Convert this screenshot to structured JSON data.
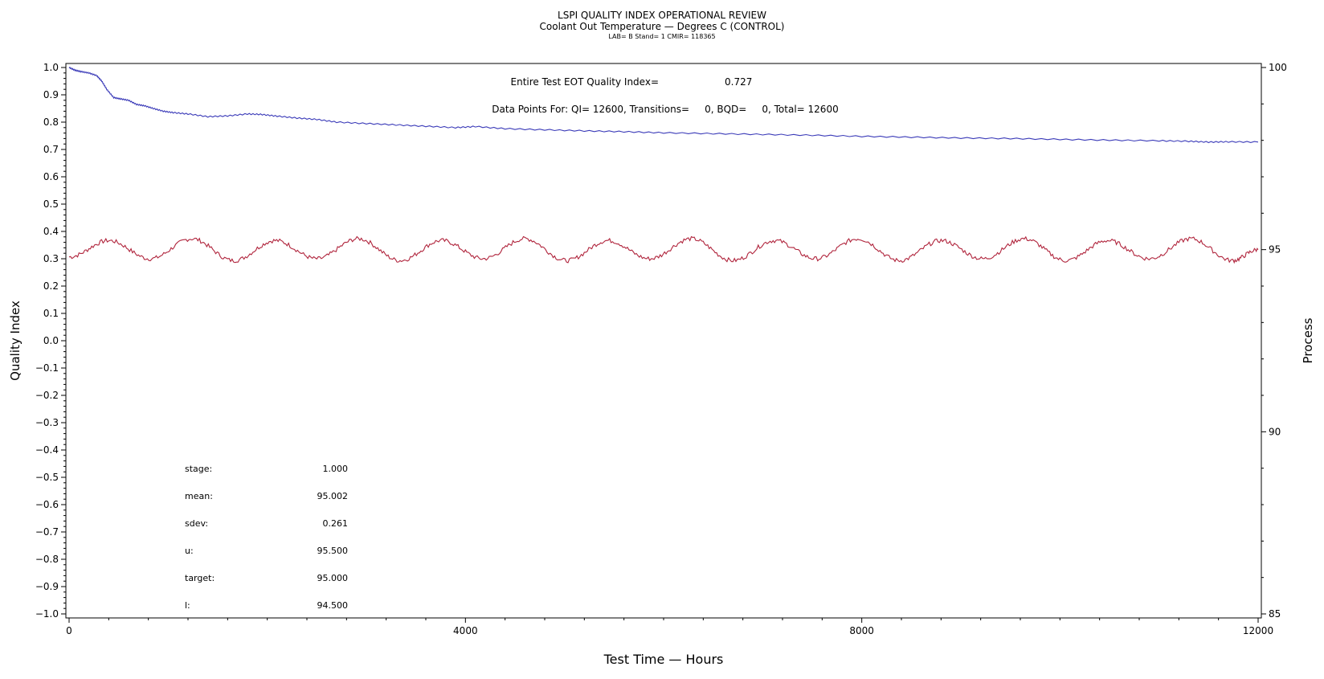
{
  "header": {
    "title": "LSPI QUALITY INDEX OPERATIONAL REVIEW",
    "subtitle": "Coolant Out Temperature — Degrees C (CONTROL)",
    "lab_line": "LAB= B Stand= 1 CMIR= 118365"
  },
  "annotations": {
    "eot_label": "Entire Test EOT Quality Index=",
    "eot_value": "0.727",
    "datapoints_line": "Data Points For: QI= 12600, Transitions=     0, BQD=     0, Total= 12600"
  },
  "stats": [
    {
      "label": "stage:",
      "value": "1.000"
    },
    {
      "label": "mean:",
      "value": "95.002"
    },
    {
      "label": "sdev:",
      "value": "0.261"
    },
    {
      "label": "u:",
      "value": "95.500"
    },
    {
      "label": "target:",
      "value": "95.000"
    },
    {
      "label": "l:",
      "value": "94.500"
    }
  ],
  "colors": {
    "quality_index": "#3a3ab8",
    "process": "#b0243c",
    "axis": "#000000"
  },
  "chart_data": {
    "type": "line",
    "title": "LSPI QUALITY INDEX OPERATIONAL REVIEW",
    "subtitle": "Coolant Out Temperature — Degrees C (CONTROL)",
    "xlabel": "Test Time — Hours",
    "ylabel": "Quality Index",
    "y2label": "Process",
    "xlim": [
      0,
      12000
    ],
    "ylim": [
      -1.0,
      1.0
    ],
    "y2lim": [
      85,
      100
    ],
    "x_ticks": [
      0,
      4000,
      8000,
      12000
    ],
    "x_tick_labels": [
      "0",
      "4000",
      "8000",
      "12000"
    ],
    "y_ticks": [
      1.0,
      0.9,
      0.8,
      0.7,
      0.6,
      0.5,
      0.4,
      0.3,
      0.2,
      0.1,
      0.0,
      -0.1,
      -0.2,
      -0.3,
      -0.4,
      -0.5,
      -0.6,
      -0.7,
      -0.8,
      -0.9,
      -1.0
    ],
    "y_tick_labels": [
      "1.0",
      "0.9",
      "0.8",
      "0.7",
      "0.6",
      "0.5",
      "0.4",
      "0.3",
      "0.2",
      "0.1",
      "0.0",
      "−0.1",
      "−0.2",
      "−0.3",
      "−0.4",
      "−0.5",
      "−0.6",
      "−0.7",
      "−0.8",
      "−0.9",
      "−1.0"
    ],
    "y2_ticks": [
      100,
      95,
      90,
      85
    ],
    "y2_tick_labels": [
      "100",
      "95",
      "90",
      "85"
    ],
    "series": [
      {
        "axis": "left",
        "x": [
          0,
          60,
          120,
          200,
          280,
          330,
          380,
          450,
          520,
          600,
          680,
          760,
          850,
          950,
          1050,
          1200,
          1400,
          1600,
          1800,
          1950,
          2100,
          2300,
          2500,
          2700,
          3000,
          3300,
          3600,
          3900,
          4100,
          4400,
          4800,
          5200,
          5600,
          6000,
          6500,
          7000,
          7500,
          8000,
          8500,
          9000,
          9500,
          10000,
          10500,
          11000,
          11300,
          11500,
          11700,
          12000
        ],
        "values": [
          1.0,
          0.99,
          0.985,
          0.98,
          0.97,
          0.95,
          0.92,
          0.89,
          0.885,
          0.88,
          0.865,
          0.86,
          0.85,
          0.84,
          0.835,
          0.83,
          0.82,
          0.823,
          0.83,
          0.828,
          0.822,
          0.815,
          0.81,
          0.8,
          0.795,
          0.79,
          0.785,
          0.78,
          0.784,
          0.776,
          0.772,
          0.768,
          0.765,
          0.761,
          0.758,
          0.755,
          0.752,
          0.748,
          0.745,
          0.742,
          0.74,
          0.737,
          0.734,
          0.732,
          0.73,
          0.727,
          0.728,
          0.727
        ]
      },
      {
        "axis": "right",
        "x": [
          0,
          400,
          820,
          1240,
          1660,
          2080,
          2500,
          2920,
          3340,
          3760,
          4180,
          4600,
          5020,
          5440,
          5860,
          6280,
          6700,
          7120,
          7540,
          7960,
          8380,
          8800,
          9220,
          9640,
          10060,
          10480,
          10900,
          11320,
          11740,
          12000
        ],
        "values": [
          94.8,
          95.25,
          94.75,
          95.3,
          94.7,
          95.25,
          94.75,
          95.3,
          94.7,
          95.25,
          94.75,
          95.3,
          94.7,
          95.25,
          94.75,
          95.3,
          94.7,
          95.25,
          94.75,
          95.3,
          94.7,
          95.25,
          94.75,
          95.3,
          94.7,
          95.25,
          94.75,
          95.3,
          94.7,
          95.0
        ]
      }
    ],
    "grid": false,
    "legend": "none"
  }
}
